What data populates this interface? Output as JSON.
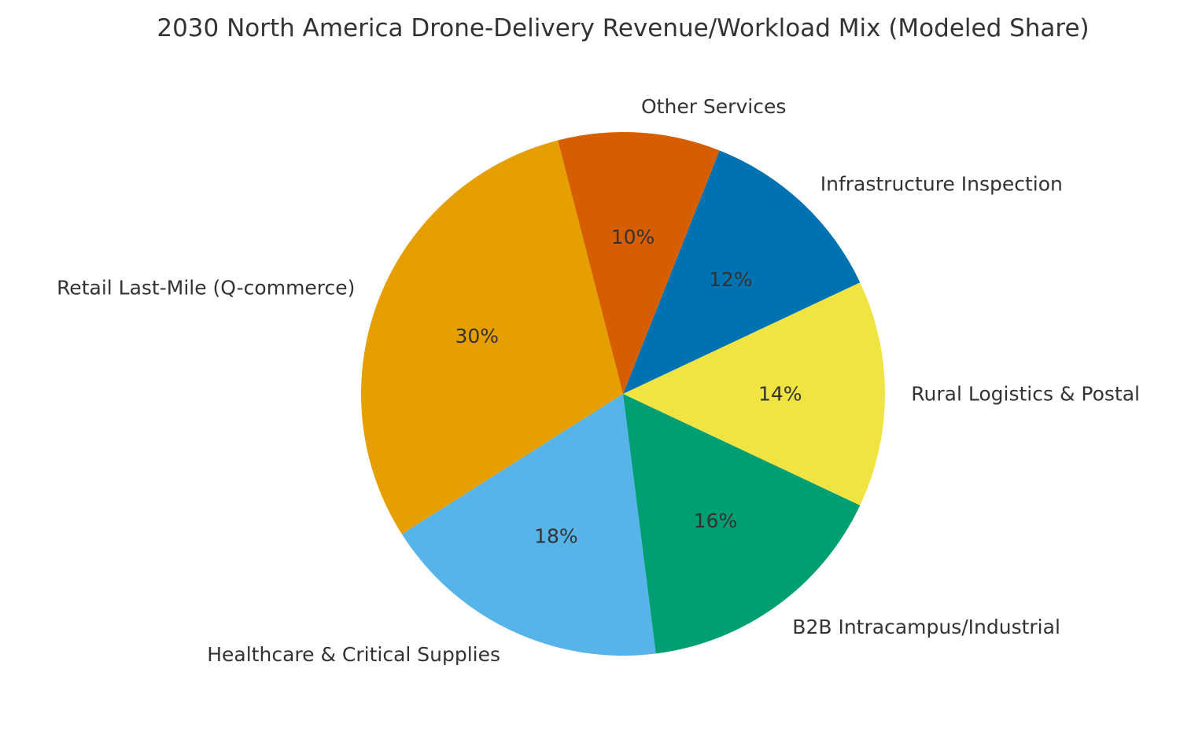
{
  "chart_data": {
    "type": "pie",
    "title": "2030 North America Drone-Delivery Revenue/Workload Mix (Modeled Share)",
    "start_angle_deg": 104.4,
    "direction": "counterclockwise",
    "slices": [
      {
        "label": "Retail Last-Mile (Q-commerce)",
        "value": 30,
        "pct_label": "30%",
        "color": "#E69F00"
      },
      {
        "label": "Healthcare & Critical Supplies",
        "value": 18,
        "pct_label": "18%",
        "color": "#56B4E9"
      },
      {
        "label": "B2B Intracampus/Industrial",
        "value": 16,
        "pct_label": "16%",
        "color": "#009E73"
      },
      {
        "label": "Rural Logistics & Postal",
        "value": 14,
        "pct_label": "14%",
        "color": "#F0E442"
      },
      {
        "label": "Infrastructure Inspection",
        "value": 12,
        "pct_label": "12%",
        "color": "#0072B2"
      },
      {
        "label": "Other Services",
        "value": 10,
        "pct_label": "10%",
        "color": "#D55E00"
      }
    ]
  }
}
